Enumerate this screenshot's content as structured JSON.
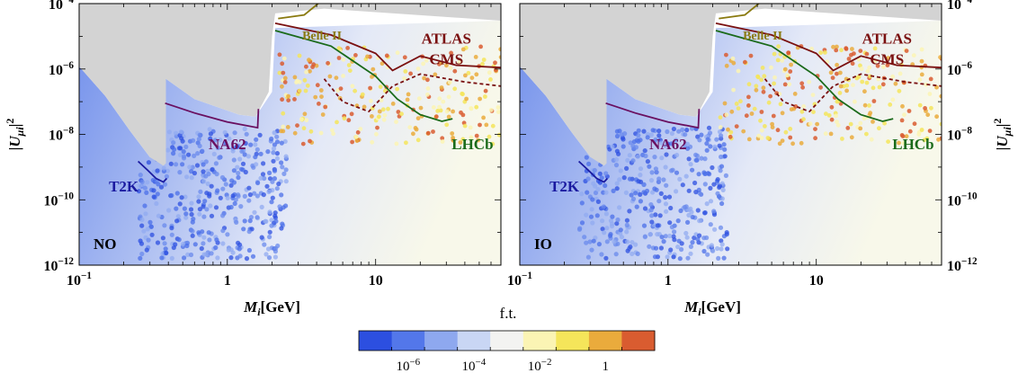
{
  "chart_data": [
    {
      "type": "scatter",
      "panel_label": "NO",
      "xlabel_main": "M",
      "xlabel_sub": "i",
      "xlabel_rest": "[GeV]",
      "ylabel": "|U_{μi}|^2",
      "xlim": [
        0.1,
        70
      ],
      "ylim": [
        1e-12,
        0.0001
      ],
      "x_scale": "log",
      "y_scale": "log",
      "x_tick_labels": [
        {
          "value": 0.1,
          "base": "10",
          "exp": "−1"
        },
        {
          "value": 1,
          "base": "1",
          "exp": ""
        },
        {
          "value": 10,
          "base": "10",
          "exp": ""
        }
      ],
      "y_tick_labels": [
        {
          "value": 0.0001,
          "base": "10",
          "exp": "−4"
        },
        {
          "value": 1e-06,
          "base": "10",
          "exp": "−6"
        },
        {
          "value": 1e-08,
          "base": "10",
          "exp": "−8"
        },
        {
          "value": 1e-10,
          "base": "10",
          "exp": "−10"
        },
        {
          "value": 1e-12,
          "base": "10",
          "exp": "−12"
        }
      ],
      "excluded_region": {
        "color": "#d3d3d3",
        "boundary": [
          [
            0.1,
            1.2e-06
          ],
          [
            0.15,
            1.5e-07
          ],
          [
            0.22,
            1.3e-08
          ],
          [
            0.3,
            2e-09
          ],
          [
            0.37,
            1.1e-09
          ],
          [
            0.385,
            1.3e-09
          ],
          [
            0.385,
            5e-07
          ],
          [
            0.6,
            1.2e-07
          ],
          [
            1.2,
            4e-08
          ],
          [
            1.55,
            3.5e-08
          ],
          [
            1.9,
            2e-07
          ],
          [
            2.0,
            1e-05
          ],
          [
            2.1,
            5e-05
          ],
          [
            4.5,
            7e-05
          ],
          [
            70,
            3e-05
          ]
        ]
      },
      "experiments": [
        {
          "name": "T2K",
          "color": "#1a1aa0",
          "points": [
            [
              0.25,
              1.5e-09
            ],
            [
              0.29,
              8e-10
            ],
            [
              0.33,
              4.5e-10
            ],
            [
              0.37,
              3.5e-10
            ],
            [
              0.39,
              4.5e-10
            ]
          ]
        },
        {
          "name": "NA62",
          "color": "#6a1060",
          "points": [
            [
              0.38,
              9e-08
            ],
            [
              0.6,
              4.5e-08
            ],
            [
              1.0,
              2.4e-08
            ],
            [
              1.6,
              1.6e-08
            ],
            [
              1.62,
              6e-08
            ]
          ]
        },
        {
          "name": "Belle II",
          "color": "#8a7a10",
          "points": [
            [
              2.2,
              3.5e-05
            ],
            [
              3.3,
              4.5e-05
            ],
            [
              4.2,
              0.00011
            ]
          ]
        },
        {
          "name": "ATLAS",
          "color": "#7a1010",
          "points": [
            [
              2.1,
              2.5e-05
            ],
            [
              5,
              1.1e-05
            ],
            [
              10,
              3e-06
            ],
            [
              13,
              9e-07
            ],
            [
              20,
              2.5e-06
            ],
            [
              35,
              1.3e-06
            ],
            [
              70,
              1.1e-06
            ]
          ]
        },
        {
          "name": "CMS",
          "color": "#7a1010",
          "dashed": true,
          "points": [
            [
              4.5,
              5e-07
            ],
            [
              6,
              1e-07
            ],
            [
              9,
              5e-08
            ],
            [
              13,
              3e-07
            ],
            [
              20,
              7e-07
            ],
            [
              40,
              4e-07
            ],
            [
              70,
              3e-07
            ]
          ]
        },
        {
          "name": "LHCb",
          "color": "#1a6a1a",
          "points": [
            [
              2.1,
              1.5e-05
            ],
            [
              5,
              5e-06
            ],
            [
              10,
              6e-07
            ],
            [
              14,
              1.2e-07
            ],
            [
              20,
              4e-08
            ],
            [
              28,
              2.5e-08
            ],
            [
              33,
              3e-08
            ]
          ]
        }
      ]
    },
    {
      "type": "scatter",
      "panel_label": "IO",
      "xlabel_main": "M",
      "xlabel_sub": "i",
      "xlabel_rest": "[GeV]",
      "ylabel": "|U_{μi}|^2",
      "xlim": [
        0.1,
        70
      ],
      "ylim": [
        1e-12,
        0.0001
      ],
      "x_scale": "log",
      "y_scale": "log",
      "x_tick_labels": [
        {
          "value": 0.1,
          "base": "10",
          "exp": "−1"
        },
        {
          "value": 1,
          "base": "1",
          "exp": ""
        },
        {
          "value": 10,
          "base": "10",
          "exp": ""
        }
      ],
      "y_tick_labels": [
        {
          "value": 0.0001,
          "base": "10",
          "exp": "−4"
        },
        {
          "value": 1e-06,
          "base": "10",
          "exp": "−6"
        },
        {
          "value": 1e-08,
          "base": "10",
          "exp": "−8"
        },
        {
          "value": 1e-10,
          "base": "10",
          "exp": "−10"
        },
        {
          "value": 1e-12,
          "base": "10",
          "exp": "−12"
        }
      ],
      "experiments_same_as_first_panel": true
    }
  ],
  "colorbar": {
    "title": "f.t.",
    "colors": [
      "#2c4fe0",
      "#5377ea",
      "#8ea8ef",
      "#c9d6f4",
      "#f3f3f1",
      "#fbf4b4",
      "#f5e55a",
      "#eaab3c",
      "#d95c30"
    ],
    "ticks": [
      {
        "base": "10",
        "exp": "−6"
      },
      {
        "base": "10",
        "exp": "−4"
      },
      {
        "base": "10",
        "exp": "−2"
      },
      {
        "base": "1",
        "exp": ""
      }
    ]
  }
}
